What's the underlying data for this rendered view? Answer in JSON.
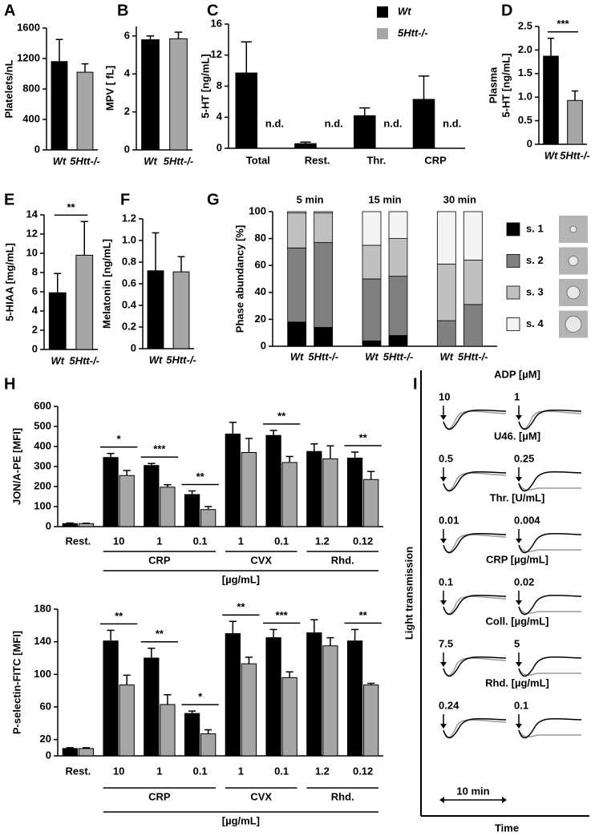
{
  "chart_data": [
    {
      "type": "bar",
      "panel": "A",
      "ylabel": "Platelets/nL",
      "categories": [
        "Wt",
        "5Htt-/-"
      ],
      "values": [
        1160,
        1020
      ],
      "errors": [
        290,
        110
      ],
      "colors": [
        "#000000",
        "#a6a6a6"
      ],
      "ylim": [
        0,
        1600
      ],
      "yticks": [
        0,
        400,
        800,
        1200,
        1600
      ]
    },
    {
      "type": "bar",
      "panel": "B",
      "ylabel": "MPV [ fL]",
      "categories": [
        "Wt",
        "5Htt-/-"
      ],
      "values": [
        5.8,
        5.85
      ],
      "errors": [
        0.2,
        0.35
      ],
      "colors": [
        "#000000",
        "#a6a6a6"
      ],
      "ylim": [
        0,
        6.5
      ],
      "yticks": [
        0,
        2,
        4,
        6
      ]
    },
    {
      "type": "bar",
      "panel": "C",
      "ylabel": "5-HT [ng/mL]",
      "categories": [
        "Total",
        "Rest.",
        "Thr.",
        "CRP"
      ],
      "series": [
        {
          "name": "Wt",
          "color": "#000000",
          "values": [
            9.7,
            0.6,
            4.2,
            6.3
          ],
          "errors": [
            4,
            0.2,
            1,
            3
          ]
        },
        {
          "name": "5Htt-/-",
          "color": "#a6a6a6",
          "values": [
            null,
            null,
            null,
            null
          ],
          "errors": [
            null,
            null,
            null,
            null
          ]
        }
      ],
      "nd_labels": [
        "n.d.",
        "n.d.",
        "n.d.",
        "n.d."
      ],
      "ylim": [
        0,
        16
      ],
      "yticks": [
        0,
        4,
        8,
        12,
        16
      ]
    },
    {
      "type": "bar",
      "panel": "D",
      "ylabel": [
        "Plasma",
        "5-HT [ng/mL]"
      ],
      "categories": [
        "Wt",
        "5Htt-/-"
      ],
      "values": [
        1.87,
        0.93
      ],
      "errors": [
        0.38,
        0.2
      ],
      "colors": [
        "#000000",
        "#a6a6a6"
      ],
      "significance": "***",
      "ylim": [
        0,
        2.5
      ],
      "yticks": [
        0,
        0.5,
        {
          "value": 1,
          "label": "1.0"
        },
        1.5,
        {
          "value": 2,
          "label": "2.0"
        },
        2.5
      ]
    },
    {
      "type": "bar",
      "panel": "E",
      "ylabel": "5-HIAA [mg/mL]",
      "categories": [
        "Wt",
        "5Htt-/-"
      ],
      "values": [
        5.9,
        9.8
      ],
      "errors": [
        2,
        3.5
      ],
      "colors": [
        "#000000",
        "#a6a6a6"
      ],
      "significance": "**",
      "ylim": [
        0,
        14
      ],
      "yticks": [
        0,
        2,
        4,
        6,
        8,
        10,
        12,
        14
      ]
    },
    {
      "type": "bar",
      "panel": "F",
      "ylabel": "Melatonin [ng/mL]",
      "categories": [
        "Wt",
        "5Htt-/-"
      ],
      "values": [
        0.72,
        0.71
      ],
      "errors": [
        0.35,
        0.14
      ],
      "colors": [
        "#000000",
        "#a6a6a6"
      ],
      "ylim": [
        0,
        1.2
      ],
      "yticks": [
        0,
        0.2,
        0.4,
        0.6,
        0.8,
        {
          "value": 1,
          "label": "1.0"
        },
        1.2
      ]
    },
    {
      "type": "stacked_bar",
      "panel": "G",
      "ylabel": "Phase abundancy [%]",
      "groups": [
        "5 min",
        "15 min",
        "30 min"
      ],
      "categories": [
        "Wt",
        "5Htt-/-",
        "Wt",
        "5Htt-/-",
        "Wt",
        "5Htt-/-"
      ],
      "series": [
        {
          "name": "s. 1",
          "color": "#000000",
          "values": [
            18,
            14,
            4,
            8,
            0,
            0
          ]
        },
        {
          "name": "s. 2",
          "color": "#808080",
          "values": [
            55,
            63,
            46,
            44,
            19,
            31
          ]
        },
        {
          "name": "s. 3",
          "color": "#c0c0c0",
          "values": [
            26,
            22,
            25,
            28,
            42,
            33
          ]
        },
        {
          "name": "s. 4",
          "color": "#f4f4f4",
          "values": [
            1,
            1,
            25,
            20,
            39,
            36
          ]
        }
      ],
      "ylim": [
        0,
        100
      ],
      "yticks": [
        0,
        20,
        40,
        60,
        80,
        100
      ]
    },
    {
      "type": "bar",
      "panel": "H",
      "ylabel": "JON/A-PE [MFI]",
      "categories": [
        "Rest.",
        "10",
        "1",
        "0.1",
        "1",
        "0.1",
        "1.2",
        "0.12"
      ],
      "series": [
        {
          "name": "Wt",
          "color": "#000000",
          "values": [
            15,
            345,
            305,
            160,
            462,
            455,
            375,
            342
          ],
          "errors": [
            3,
            20,
            10,
            18,
            58,
            25,
            38,
            30
          ]
        },
        {
          "name": "5Htt-/-",
          "color": "#a6a6a6",
          "values": [
            15,
            255,
            197,
            85,
            370,
            320,
            338,
            235
          ],
          "errors": [
            2,
            25,
            12,
            15,
            70,
            30,
            65,
            40
          ]
        }
      ],
      "significance": [
        null,
        "*",
        "***",
        "**",
        null,
        "**",
        null,
        "**"
      ],
      "groups": [
        {
          "label": "CRP",
          "from": 1,
          "to": 3
        },
        {
          "label": "CVX",
          "from": 4,
          "to": 5
        },
        {
          "label": "Rhd.",
          "from": 6,
          "to": 7
        }
      ],
      "group_unit": "[µg/mL]",
      "ylim": [
        0,
        600
      ],
      "yticks": [
        0,
        100,
        200,
        300,
        400,
        500,
        600
      ]
    },
    {
      "type": "bar",
      "ylabel": "P-selectin-FITC [MFI]",
      "categories": [
        "Rest.",
        "10",
        "1",
        "0.1",
        "1",
        "0.1",
        "1.2",
        "0.12"
      ],
      "series": [
        {
          "name": "Wt",
          "color": "#000000",
          "values": [
            9,
            141,
            120,
            52,
            150,
            145,
            151,
            141
          ],
          "errors": [
            1,
            13,
            12,
            3,
            15,
            10,
            16,
            14
          ]
        },
        {
          "name": "5Htt-/-",
          "color": "#a6a6a6",
          "values": [
            9,
            87,
            63,
            27,
            113,
            96,
            135,
            87
          ],
          "errors": [
            1,
            12,
            12,
            5,
            8,
            7,
            10,
            2
          ]
        }
      ],
      "significance": [
        null,
        "**",
        "**",
        "*",
        "**",
        "***",
        null,
        "**"
      ],
      "groups": [
        {
          "label": "CRP",
          "from": 1,
          "to": 3
        },
        {
          "label": "CVX",
          "from": 4,
          "to": 5
        },
        {
          "label": "Rhd.",
          "from": 6,
          "to": 7
        }
      ],
      "group_unit": "[µg/mL]",
      "ylim": [
        0,
        180
      ],
      "yticks": [
        0,
        20,
        60,
        100,
        140,
        180
      ]
    },
    {
      "type": "traces",
      "panel": "I",
      "ylabel": "Light transmission",
      "xlabel": "Time",
      "scale_label": "10 min",
      "rows": [
        {
          "agonist": "ADP [µM]",
          "doses": [
            "10",
            "1"
          ]
        },
        {
          "agonist": "U46. [µM]",
          "doses": [
            "0.5",
            "0.25"
          ]
        },
        {
          "agonist": "Thr. [U/mL]",
          "doses": [
            "0.01",
            "0.004"
          ]
        },
        {
          "agonist": "CRP [µg/mL]",
          "doses": [
            "0.1",
            "0.02"
          ]
        },
        {
          "agonist": "Coll. [µg/mL]",
          "doses": [
            "7.5",
            "5"
          ]
        },
        {
          "agonist": "Rhd. [µg/mL]",
          "doses": [
            "0.24",
            "0.1"
          ]
        }
      ]
    }
  ]
}
